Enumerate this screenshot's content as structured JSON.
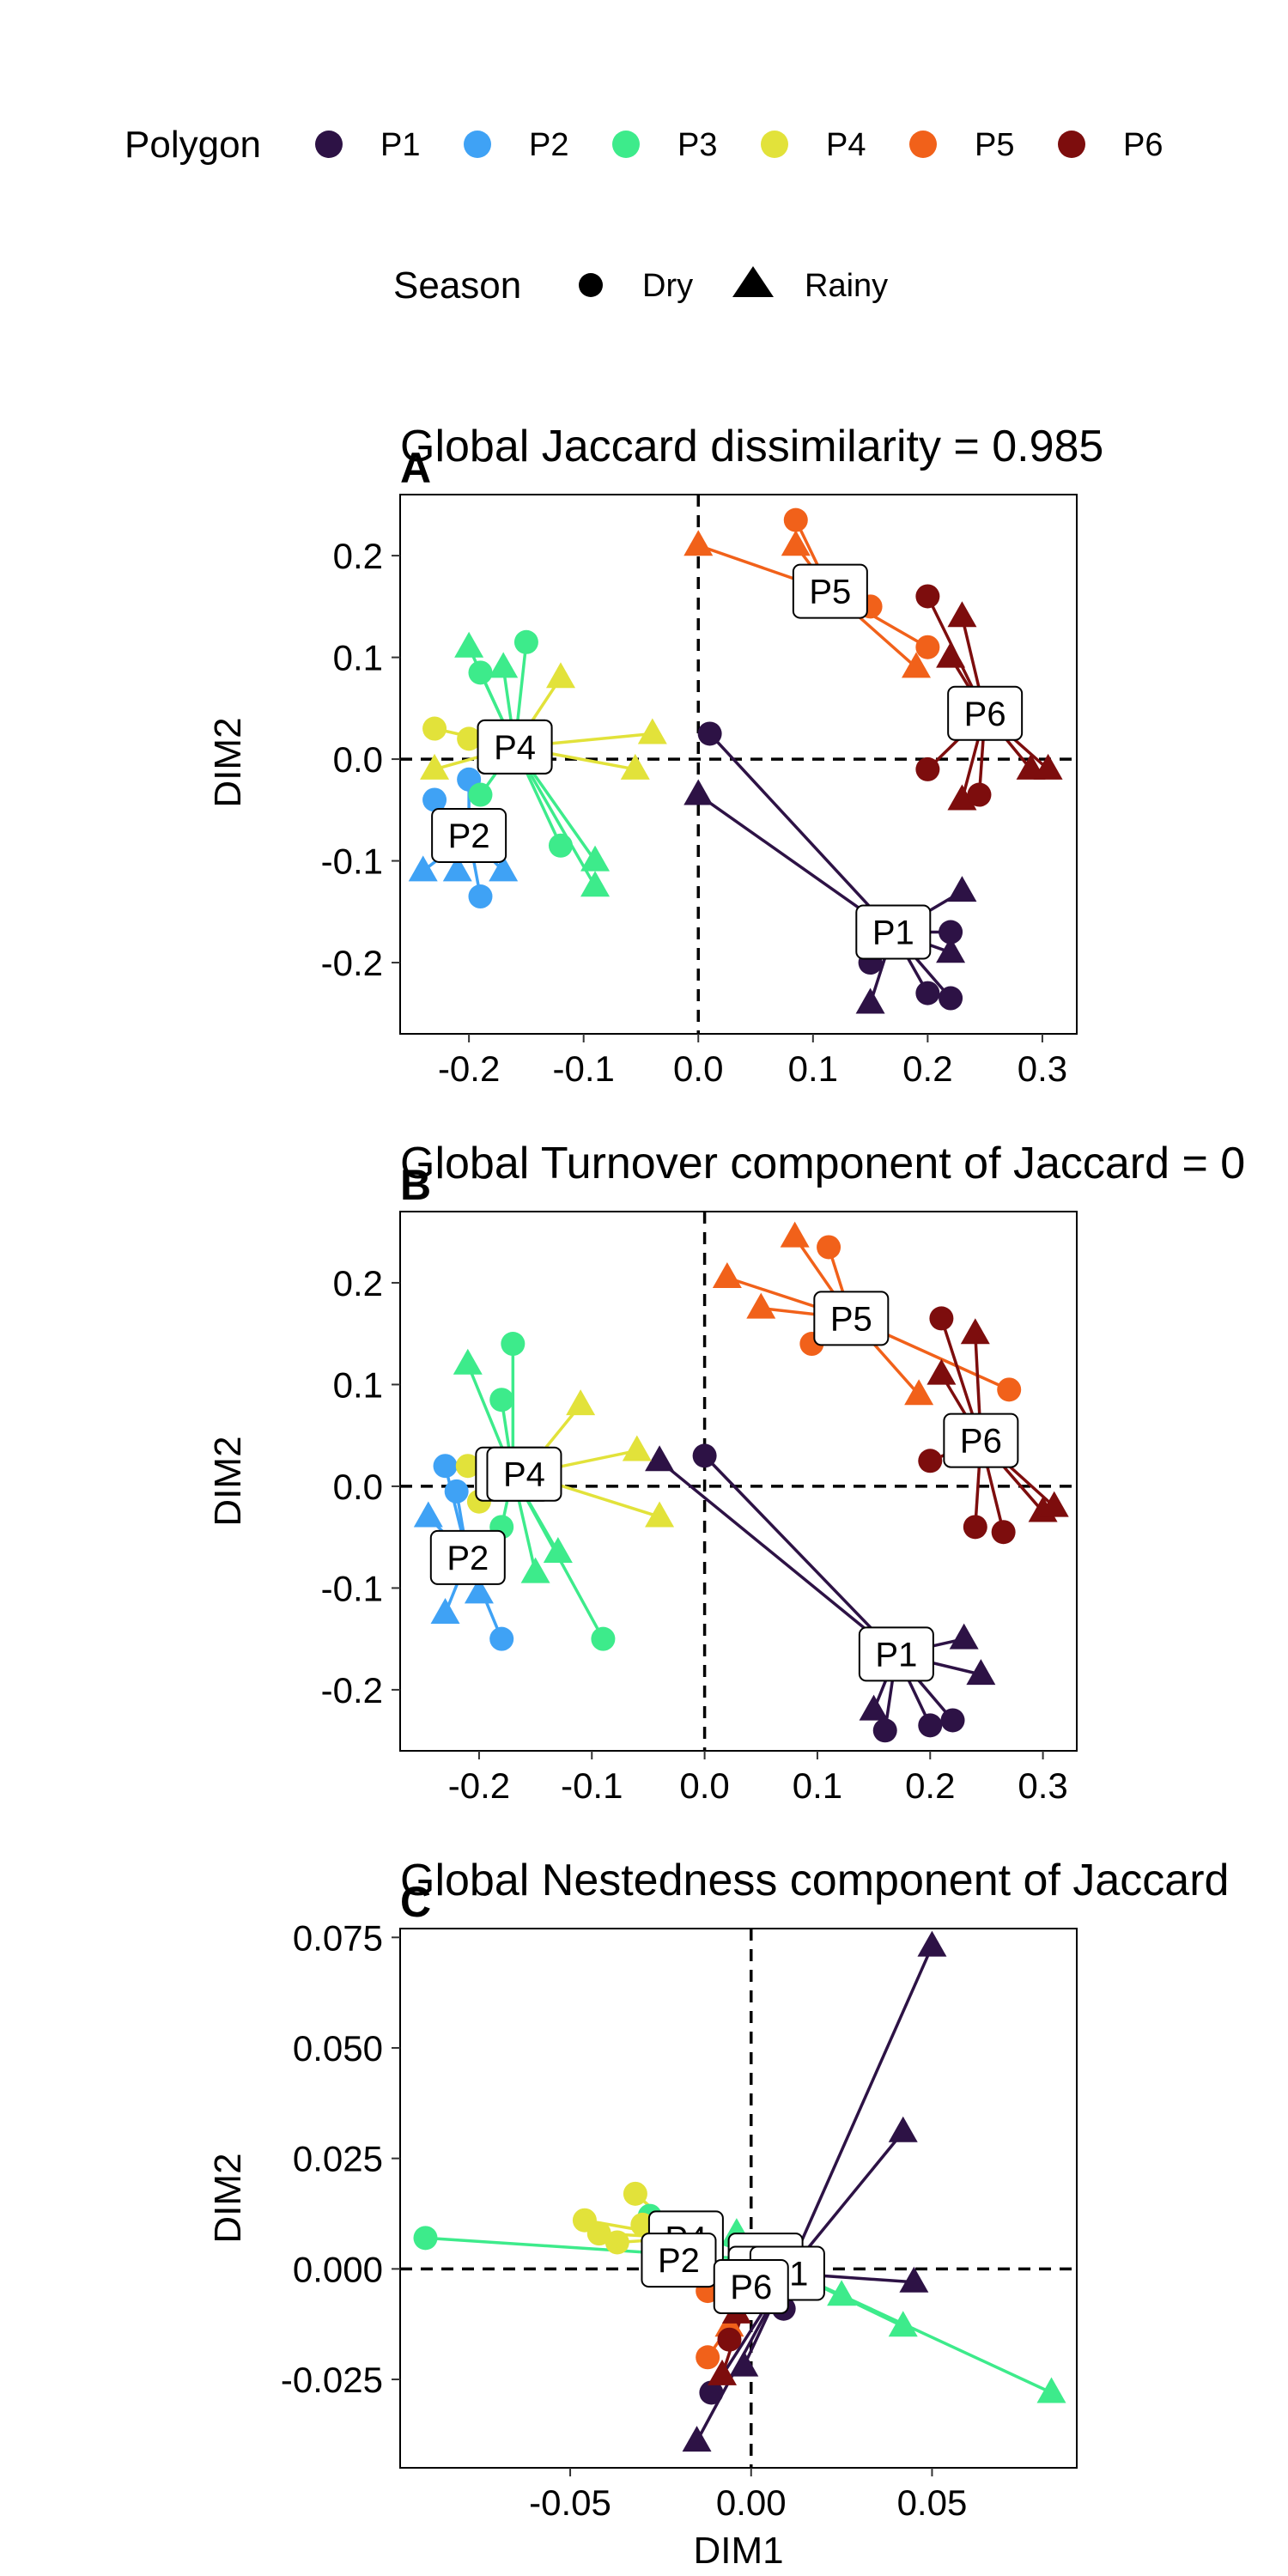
{
  "legend": {
    "polygon_title": "Polygon",
    "season_title": "Season",
    "polygons": [
      {
        "label": "P1",
        "color": "#2d1245"
      },
      {
        "label": "P2",
        "color": "#3fa2f5"
      },
      {
        "label": "P3",
        "color": "#3deb8b"
      },
      {
        "label": "P4",
        "color": "#e2e23a"
      },
      {
        "label": "P5",
        "color": "#f1611a"
      },
      {
        "label": "P6",
        "color": "#7d0d0d"
      }
    ],
    "seasons": [
      {
        "label": "Dry",
        "shape": "circle"
      },
      {
        "label": "Rainy",
        "shape": "triangle"
      }
    ]
  },
  "chart_data": [
    {
      "type": "scatter",
      "panel": "A",
      "title": "Global Jaccard dissimilarity = 0.985",
      "xlabel": "",
      "ylabel": "DIM2",
      "xlim": [
        -0.26,
        0.33
      ],
      "ylim": [
        -0.27,
        0.26
      ],
      "xticks": [
        -0.2,
        -0.1,
        0.0,
        0.1,
        0.2,
        0.3
      ],
      "xtick_labels": [
        "-0.2",
        "-0.1",
        "0.0",
        "0.1",
        "0.2",
        "0.3"
      ],
      "yticks": [
        -0.2,
        -0.1,
        0.0,
        0.1,
        0.2
      ],
      "ytick_labels": [
        "-0.2",
        "-0.1",
        "0.0",
        "0.1",
        "0.2"
      ],
      "reference_lines": {
        "x": 0,
        "y": 0
      },
      "groups": [
        {
          "name": "P1",
          "centroid": [
            0.17,
            -0.17
          ],
          "points": [
            {
              "x": 0.01,
              "y": 0.025,
              "s": "Dry"
            },
            {
              "x": 0.0,
              "y": -0.035,
              "s": "Rainy"
            },
            {
              "x": 0.15,
              "y": -0.2,
              "s": "Dry"
            },
            {
              "x": 0.15,
              "y": -0.24,
              "s": "Rainy"
            },
            {
              "x": 0.2,
              "y": -0.23,
              "s": "Dry"
            },
            {
              "x": 0.22,
              "y": -0.235,
              "s": "Dry"
            },
            {
              "x": 0.22,
              "y": -0.17,
              "s": "Dry"
            },
            {
              "x": 0.23,
              "y": -0.13,
              "s": "Rainy"
            },
            {
              "x": 0.22,
              "y": -0.19,
              "s": "Rainy"
            }
          ]
        },
        {
          "name": "P2",
          "centroid": [
            -0.2,
            -0.075
          ],
          "points": [
            {
              "x": -0.23,
              "y": -0.04,
              "s": "Dry"
            },
            {
              "x": -0.24,
              "y": -0.11,
              "s": "Rainy"
            },
            {
              "x": -0.21,
              "y": -0.11,
              "s": "Rainy"
            },
            {
              "x": -0.19,
              "y": -0.135,
              "s": "Dry"
            },
            {
              "x": -0.17,
              "y": -0.11,
              "s": "Rainy"
            },
            {
              "x": -0.2,
              "y": -0.02,
              "s": "Dry"
            }
          ]
        },
        {
          "name": "P3",
          "centroid": [
            -0.16,
            0.012
          ],
          "points": [
            {
              "x": -0.2,
              "y": 0.11,
              "s": "Rainy"
            },
            {
              "x": -0.15,
              "y": 0.115,
              "s": "Dry"
            },
            {
              "x": -0.17,
              "y": 0.09,
              "s": "Rainy"
            },
            {
              "x": -0.19,
              "y": 0.085,
              "s": "Dry"
            },
            {
              "x": -0.12,
              "y": -0.085,
              "s": "Dry"
            },
            {
              "x": -0.09,
              "y": -0.1,
              "s": "Rainy"
            },
            {
              "x": -0.09,
              "y": -0.125,
              "s": "Rainy"
            },
            {
              "x": -0.19,
              "y": -0.035,
              "s": "Dry"
            }
          ]
        },
        {
          "name": "P4",
          "centroid": [
            -0.16,
            0.012
          ],
          "points": [
            {
              "x": -0.23,
              "y": 0.03,
              "s": "Dry"
            },
            {
              "x": -0.23,
              "y": -0.01,
              "s": "Rainy"
            },
            {
              "x": -0.12,
              "y": 0.08,
              "s": "Rainy"
            },
            {
              "x": -0.04,
              "y": 0.025,
              "s": "Rainy"
            },
            {
              "x": -0.055,
              "y": -0.01,
              "s": "Rainy"
            },
            {
              "x": -0.2,
              "y": 0.02,
              "s": "Dry"
            }
          ]
        },
        {
          "name": "P5",
          "centroid": [
            0.115,
            0.165
          ],
          "points": [
            {
              "x": 0.0,
              "y": 0.21,
              "s": "Rainy"
            },
            {
              "x": 0.085,
              "y": 0.235,
              "s": "Dry"
            },
            {
              "x": 0.085,
              "y": 0.21,
              "s": "Rainy"
            },
            {
              "x": 0.15,
              "y": 0.15,
              "s": "Dry"
            },
            {
              "x": 0.19,
              "y": 0.09,
              "s": "Rainy"
            },
            {
              "x": 0.2,
              "y": 0.11,
              "s": "Dry"
            }
          ]
        },
        {
          "name": "P6",
          "centroid": [
            0.25,
            0.045
          ],
          "points": [
            {
              "x": 0.2,
              "y": 0.16,
              "s": "Dry"
            },
            {
              "x": 0.23,
              "y": 0.14,
              "s": "Rainy"
            },
            {
              "x": 0.22,
              "y": 0.1,
              "s": "Rainy"
            },
            {
              "x": 0.2,
              "y": -0.01,
              "s": "Dry"
            },
            {
              "x": 0.23,
              "y": -0.04,
              "s": "Rainy"
            },
            {
              "x": 0.245,
              "y": -0.035,
              "s": "Dry"
            },
            {
              "x": 0.29,
              "y": -0.01,
              "s": "Rainy"
            },
            {
              "x": 0.305,
              "y": -0.01,
              "s": "Rainy"
            }
          ]
        }
      ]
    },
    {
      "type": "scatter",
      "panel": "B",
      "title": "Global Turnover component of Jaccard  = 0",
      "xlabel": "",
      "ylabel": "DIM2",
      "xlim": [
        -0.27,
        0.33
      ],
      "ylim": [
        -0.26,
        0.27
      ],
      "xticks": [
        -0.2,
        -0.1,
        0.0,
        0.1,
        0.2,
        0.3
      ],
      "xtick_labels": [
        "-0.2",
        "-0.1",
        "0.0",
        "0.1",
        "0.2",
        "0.3"
      ],
      "yticks": [
        -0.2,
        -0.1,
        0.0,
        0.1,
        0.2
      ],
      "ytick_labels": [
        "-0.2",
        "-0.1",
        "0.0",
        "0.1",
        "0.2"
      ],
      "reference_lines": {
        "x": 0,
        "y": 0
      },
      "groups": [
        {
          "name": "P1",
          "centroid": [
            0.17,
            -0.165
          ],
          "points": [
            {
              "x": 0.0,
              "y": 0.03,
              "s": "Dry"
            },
            {
              "x": -0.04,
              "y": 0.025,
              "s": "Rainy"
            },
            {
              "x": 0.15,
              "y": -0.22,
              "s": "Rainy"
            },
            {
              "x": 0.16,
              "y": -0.24,
              "s": "Dry"
            },
            {
              "x": 0.2,
              "y": -0.235,
              "s": "Dry"
            },
            {
              "x": 0.22,
              "y": -0.23,
              "s": "Dry"
            },
            {
              "x": 0.23,
              "y": -0.15,
              "s": "Rainy"
            },
            {
              "x": 0.245,
              "y": -0.185,
              "s": "Rainy"
            }
          ]
        },
        {
          "name": "P2",
          "centroid": [
            -0.21,
            -0.07
          ],
          "points": [
            {
              "x": -0.23,
              "y": 0.02,
              "s": "Dry"
            },
            {
              "x": -0.245,
              "y": -0.03,
              "s": "Rainy"
            },
            {
              "x": -0.23,
              "y": -0.125,
              "s": "Rainy"
            },
            {
              "x": -0.18,
              "y": -0.15,
              "s": "Dry"
            },
            {
              "x": -0.2,
              "y": -0.105,
              "s": "Rainy"
            },
            {
              "x": -0.22,
              "y": -0.005,
              "s": "Dry"
            }
          ]
        },
        {
          "name": "P3",
          "centroid": [
            -0.17,
            0.012
          ],
          "points": [
            {
              "x": -0.21,
              "y": 0.12,
              "s": "Rainy"
            },
            {
              "x": -0.17,
              "y": 0.14,
              "s": "Dry"
            },
            {
              "x": -0.18,
              "y": 0.085,
              "s": "Dry"
            },
            {
              "x": -0.15,
              "y": -0.085,
              "s": "Rainy"
            },
            {
              "x": -0.09,
              "y": -0.15,
              "s": "Dry"
            },
            {
              "x": -0.13,
              "y": -0.065,
              "s": "Rainy"
            },
            {
              "x": -0.18,
              "y": -0.04,
              "s": "Dry"
            }
          ]
        },
        {
          "name": "P4",
          "centroid": [
            -0.16,
            0.012
          ],
          "points": [
            {
              "x": -0.21,
              "y": 0.02,
              "s": "Dry"
            },
            {
              "x": -0.11,
              "y": 0.08,
              "s": "Rainy"
            },
            {
              "x": -0.06,
              "y": 0.035,
              "s": "Rainy"
            },
            {
              "x": -0.04,
              "y": -0.03,
              "s": "Rainy"
            },
            {
              "x": -0.2,
              "y": -0.015,
              "s": "Dry"
            }
          ]
        },
        {
          "name": "P5",
          "centroid": [
            0.13,
            0.165
          ],
          "points": [
            {
              "x": 0.02,
              "y": 0.205,
              "s": "Rainy"
            },
            {
              "x": 0.08,
              "y": 0.245,
              "s": "Rainy"
            },
            {
              "x": 0.11,
              "y": 0.235,
              "s": "Dry"
            },
            {
              "x": 0.05,
              "y": 0.175,
              "s": "Rainy"
            },
            {
              "x": 0.19,
              "y": 0.09,
              "s": "Rainy"
            },
            {
              "x": 0.27,
              "y": 0.095,
              "s": "Dry"
            },
            {
              "x": 0.095,
              "y": 0.14,
              "s": "Dry"
            }
          ]
        },
        {
          "name": "P6",
          "centroid": [
            0.245,
            0.045
          ],
          "points": [
            {
              "x": 0.21,
              "y": 0.165,
              "s": "Dry"
            },
            {
              "x": 0.24,
              "y": 0.15,
              "s": "Rainy"
            },
            {
              "x": 0.21,
              "y": 0.11,
              "s": "Rainy"
            },
            {
              "x": 0.2,
              "y": 0.025,
              "s": "Dry"
            },
            {
              "x": 0.24,
              "y": -0.04,
              "s": "Dry"
            },
            {
              "x": 0.265,
              "y": -0.045,
              "s": "Dry"
            },
            {
              "x": 0.3,
              "y": -0.025,
              "s": "Rainy"
            },
            {
              "x": 0.31,
              "y": -0.02,
              "s": "Rainy"
            }
          ]
        }
      ]
    },
    {
      "type": "scatter",
      "panel": "C",
      "title": "Global  Nestedness component of Jaccard",
      "xlabel": "DIM1",
      "ylabel": "DIM2",
      "xlim": [
        -0.097,
        0.09
      ],
      "ylim": [
        -0.045,
        0.077
      ],
      "xticks": [
        -0.05,
        0.0,
        0.05
      ],
      "xtick_labels": [
        "-0.05",
        "0.00",
        "0.05"
      ],
      "yticks": [
        -0.025,
        0.0,
        0.025,
        0.05,
        0.075
      ],
      "ytick_labels": [
        "-0.025",
        "0.000",
        "0.025",
        "0.050",
        "0.075"
      ],
      "reference_lines": {
        "x": 0,
        "y": 0
      },
      "groups": [
        {
          "name": "P1",
          "centroid": [
            0.01,
            -0.001
          ],
          "points": [
            {
              "x": 0.05,
              "y": 0.073,
              "s": "Rainy"
            },
            {
              "x": 0.042,
              "y": 0.031,
              "s": "Rainy"
            },
            {
              "x": 0.045,
              "y": -0.003,
              "s": "Rainy"
            },
            {
              "x": -0.015,
              "y": -0.039,
              "s": "Rainy"
            },
            {
              "x": -0.011,
              "y": -0.028,
              "s": "Dry"
            },
            {
              "x": 0.009,
              "y": -0.009,
              "s": "Dry"
            },
            {
              "x": -0.002,
              "y": -0.022,
              "s": "Rainy"
            }
          ]
        },
        {
          "name": "P2",
          "centroid": [
            -0.02,
            0.002
          ],
          "points": [
            {
              "x": -0.025,
              "y": -0.001,
              "s": "Rainy"
            },
            {
              "x": -0.018,
              "y": 0.002,
              "s": "Dry"
            }
          ]
        },
        {
          "name": "P3",
          "centroid": [
            0.004,
            0.002
          ],
          "points": [
            {
              "x": -0.09,
              "y": 0.007,
              "s": "Dry"
            },
            {
              "x": 0.083,
              "y": -0.028,
              "s": "Rainy"
            },
            {
              "x": 0.042,
              "y": -0.013,
              "s": "Rainy"
            },
            {
              "x": 0.025,
              "y": -0.006,
              "s": "Rainy"
            },
            {
              "x": -0.028,
              "y": 0.012,
              "s": "Dry"
            },
            {
              "x": -0.004,
              "y": 0.008,
              "s": "Rainy"
            }
          ]
        },
        {
          "name": "P4",
          "centroid": [
            -0.018,
            0.007
          ],
          "points": [
            {
              "x": -0.046,
              "y": 0.011,
              "s": "Dry"
            },
            {
              "x": -0.037,
              "y": 0.006,
              "s": "Dry"
            },
            {
              "x": -0.032,
              "y": 0.017,
              "s": "Dry"
            },
            {
              "x": -0.042,
              "y": 0.008,
              "s": "Dry"
            },
            {
              "x": -0.03,
              "y": 0.01,
              "s": "Dry"
            }
          ]
        },
        {
          "name": "P5",
          "centroid": [
            0.004,
            -0.001
          ],
          "points": [
            {
              "x": -0.012,
              "y": -0.02,
              "s": "Dry"
            },
            {
              "x": -0.012,
              "y": -0.005,
              "s": "Dry"
            },
            {
              "x": -0.006,
              "y": -0.013,
              "s": "Rainy"
            }
          ]
        },
        {
          "name": "P6",
          "centroid": [
            0.0,
            -0.004
          ],
          "points": [
            {
              "x": -0.008,
              "y": -0.024,
              "s": "Rainy"
            },
            {
              "x": -0.006,
              "y": -0.016,
              "s": "Dry"
            },
            {
              "x": -0.004,
              "y": -0.01,
              "s": "Rainy"
            }
          ]
        }
      ],
      "label_order": [
        "P4",
        "P3",
        "P5",
        "P2",
        "P1",
        "P6"
      ]
    }
  ]
}
